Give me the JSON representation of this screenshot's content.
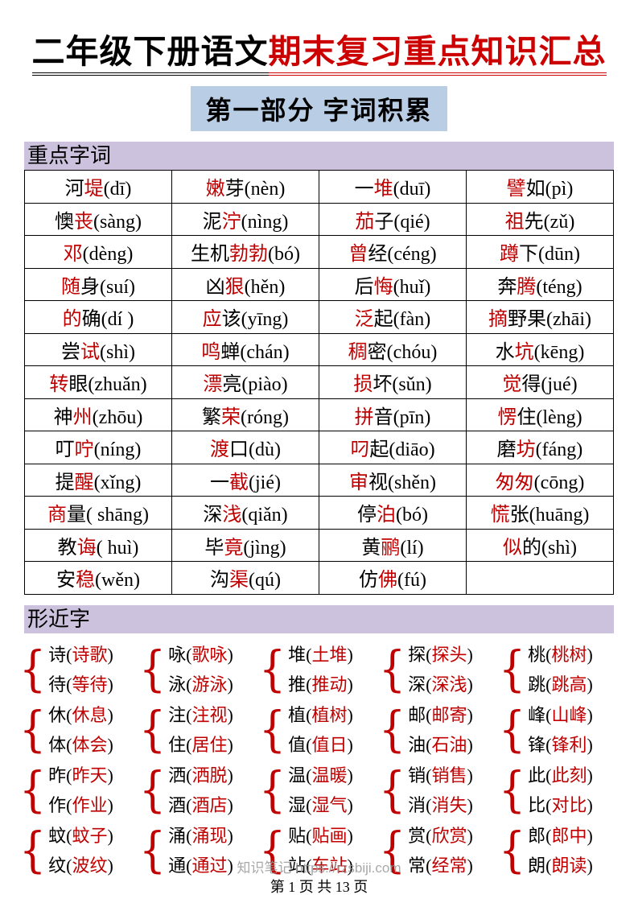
{
  "title": {
    "black": "二年级下册语文",
    "red": "期末复习重点知识汇总"
  },
  "subtitle": "第一部分 字词积累",
  "colors": {
    "red_char": "#c00000",
    "title_red": "#cc0000",
    "section_bg": "#ccc2dd",
    "subtitle_bg": "#b9cde5",
    "watermark_gray": "#9a9a9a"
  },
  "brace_glyph": "{",
  "key_words": {
    "header": "重点字词",
    "rows": [
      [
        [
          [
            "河",
            "k"
          ],
          [
            "堤",
            "r"
          ],
          [
            "(dī)",
            "k"
          ]
        ],
        [
          [
            "嫩",
            "r"
          ],
          [
            "芽",
            "k"
          ],
          [
            "(nèn)",
            "k"
          ]
        ],
        [
          [
            "一",
            "k"
          ],
          [
            "堆",
            "r"
          ],
          [
            "(duī)",
            "k"
          ]
        ],
        [
          [
            "譬",
            "r"
          ],
          [
            "如",
            "k"
          ],
          [
            "(pì)",
            "k"
          ]
        ]
      ],
      [
        [
          [
            "懊",
            "k"
          ],
          [
            "丧",
            "r"
          ],
          [
            "(sàng)",
            "k"
          ]
        ],
        [
          [
            "泥",
            "k"
          ],
          [
            "泞",
            "r"
          ],
          [
            "(nìng)",
            "k"
          ]
        ],
        [
          [
            "茄",
            "r"
          ],
          [
            "子",
            "k"
          ],
          [
            "(qié)",
            "k"
          ]
        ],
        [
          [
            "祖",
            "r"
          ],
          [
            "先",
            "k"
          ],
          [
            "(zǔ)",
            "k"
          ]
        ]
      ],
      [
        [
          [
            "邓",
            "r"
          ],
          [
            "(dèng)",
            "k"
          ]
        ],
        [
          [
            "生机",
            "k"
          ],
          [
            "勃勃",
            "r"
          ],
          [
            "(bó)",
            "k"
          ]
        ],
        [
          [
            "曾",
            "r"
          ],
          [
            "经",
            "k"
          ],
          [
            "(céng)",
            "k"
          ]
        ],
        [
          [
            "蹲",
            "r"
          ],
          [
            "下",
            "k"
          ],
          [
            "(dūn)",
            "k"
          ]
        ]
      ],
      [
        [
          [
            "随",
            "r"
          ],
          [
            "身",
            "k"
          ],
          [
            "(suí)",
            "k"
          ]
        ],
        [
          [
            "凶",
            "k"
          ],
          [
            "狠",
            "r"
          ],
          [
            "(hěn)",
            "k"
          ]
        ],
        [
          [
            "后",
            "k"
          ],
          [
            "悔",
            "r"
          ],
          [
            "(huǐ)",
            "k"
          ]
        ],
        [
          [
            "奔",
            "k"
          ],
          [
            "腾",
            "r"
          ],
          [
            "(téng)",
            "k"
          ]
        ]
      ],
      [
        [
          [
            "的",
            "r"
          ],
          [
            "确",
            "k"
          ],
          [
            "(dí )",
            "k"
          ]
        ],
        [
          [
            "应",
            "r"
          ],
          [
            "该",
            "k"
          ],
          [
            "(yīng)",
            "k"
          ]
        ],
        [
          [
            "泛",
            "r"
          ],
          [
            "起",
            "k"
          ],
          [
            "(fàn)",
            "k"
          ]
        ],
        [
          [
            "摘",
            "r"
          ],
          [
            "野果",
            "k"
          ],
          [
            "(zhāi)",
            "k"
          ]
        ]
      ],
      [
        [
          [
            "尝",
            "k"
          ],
          [
            "试",
            "r"
          ],
          [
            "(shì)",
            "k"
          ]
        ],
        [
          [
            "鸣",
            "r"
          ],
          [
            "蝉",
            "k"
          ],
          [
            "(chán)",
            "k"
          ]
        ],
        [
          [
            "稠",
            "r"
          ],
          [
            "密",
            "k"
          ],
          [
            "(chóu)",
            "k"
          ]
        ],
        [
          [
            "水",
            "k"
          ],
          [
            "坑",
            "r"
          ],
          [
            "(kēng)",
            "k"
          ]
        ]
      ],
      [
        [
          [
            "转",
            "r"
          ],
          [
            "眼",
            "k"
          ],
          [
            "(zhuǎn)",
            "k"
          ]
        ],
        [
          [
            "漂",
            "r"
          ],
          [
            "亮",
            "k"
          ],
          [
            "(piào)",
            "k"
          ]
        ],
        [
          [
            "损",
            "r"
          ],
          [
            "坏",
            "k"
          ],
          [
            "(sǔn)",
            "k"
          ]
        ],
        [
          [
            "觉",
            "r"
          ],
          [
            "得",
            "k"
          ],
          [
            "(jué)",
            "k"
          ]
        ]
      ],
      [
        [
          [
            "神",
            "k"
          ],
          [
            "州",
            "r"
          ],
          [
            "(zhōu)",
            "k"
          ]
        ],
        [
          [
            "繁",
            "k"
          ],
          [
            "荣",
            "r"
          ],
          [
            "(róng)",
            "k"
          ]
        ],
        [
          [
            "拼",
            "r"
          ],
          [
            "音",
            "k"
          ],
          [
            "(pīn)",
            "k"
          ]
        ],
        [
          [
            "愣",
            "r"
          ],
          [
            "住",
            "k"
          ],
          [
            "(lèng)",
            "k"
          ]
        ]
      ],
      [
        [
          [
            "叮",
            "k"
          ],
          [
            "咛",
            "r"
          ],
          [
            "(níng)",
            "k"
          ]
        ],
        [
          [
            "渡",
            "r"
          ],
          [
            "口",
            "k"
          ],
          [
            "(dù)",
            "k"
          ]
        ],
        [
          [
            "叼",
            "r"
          ],
          [
            "起",
            "k"
          ],
          [
            "(diāo)",
            "k"
          ]
        ],
        [
          [
            "磨",
            "k"
          ],
          [
            "坊",
            "r"
          ],
          [
            "(fáng)",
            "k"
          ]
        ]
      ],
      [
        [
          [
            "提",
            "k"
          ],
          [
            "醒",
            "r"
          ],
          [
            "(xǐng)",
            "k"
          ]
        ],
        [
          [
            "一",
            "k"
          ],
          [
            "截",
            "r"
          ],
          [
            "(jié)",
            "k"
          ]
        ],
        [
          [
            "审",
            "r"
          ],
          [
            "视",
            "k"
          ],
          [
            "(shěn)",
            "k"
          ]
        ],
        [
          [
            "匆匆",
            "r"
          ],
          [
            "(cōng)",
            "k"
          ]
        ]
      ],
      [
        [
          [
            "商",
            "r"
          ],
          [
            "量",
            "k"
          ],
          [
            "( shāng)",
            "k"
          ]
        ],
        [
          [
            "深",
            "k"
          ],
          [
            "浅",
            "r"
          ],
          [
            "(qiǎn)",
            "k"
          ]
        ],
        [
          [
            "停",
            "k"
          ],
          [
            "泊",
            "r"
          ],
          [
            "(bó)",
            "k"
          ]
        ],
        [
          [
            "慌",
            "r"
          ],
          [
            "张",
            "k"
          ],
          [
            "(huāng)",
            "k"
          ]
        ]
      ],
      [
        [
          [
            "教",
            "k"
          ],
          [
            "诲",
            "r"
          ],
          [
            "( huì)",
            "k"
          ]
        ],
        [
          [
            "毕",
            "k"
          ],
          [
            "竟",
            "r"
          ],
          [
            "(jìng)",
            "k"
          ]
        ],
        [
          [
            "黄",
            "k"
          ],
          [
            "鹂",
            "r"
          ],
          [
            "(lí)",
            "k"
          ]
        ],
        [
          [
            "似",
            "r"
          ],
          [
            "的",
            "k"
          ],
          [
            "(shì)",
            "k"
          ]
        ]
      ],
      [
        [
          [
            "安",
            "k"
          ],
          [
            "稳",
            "r"
          ],
          [
            "(wěn)",
            "k"
          ]
        ],
        [
          [
            "沟",
            "k"
          ],
          [
            "渠",
            "r"
          ],
          [
            "(qú)",
            "k"
          ]
        ],
        [
          [
            "仿",
            "k"
          ],
          [
            "佛",
            "r"
          ],
          [
            "(fú)",
            "k"
          ]
        ],
        []
      ]
    ]
  },
  "similar_chars": {
    "header": "形近字",
    "rows": [
      [
        {
          "top": [
            "诗",
            "诗歌"
          ],
          "bottom": [
            "待",
            "等待"
          ]
        },
        {
          "top": [
            "咏",
            "歌咏"
          ],
          "bottom": [
            "泳",
            "游泳"
          ]
        },
        {
          "top": [
            "堆",
            "土堆"
          ],
          "bottom": [
            "推",
            "推动"
          ]
        },
        {
          "top": [
            "探",
            "探头"
          ],
          "bottom": [
            "深",
            "深浅"
          ]
        },
        {
          "top": [
            "桃",
            "桃树"
          ],
          "bottom": [
            "跳",
            "跳高"
          ]
        }
      ],
      [
        {
          "top": [
            "休",
            "休息"
          ],
          "bottom": [
            "体",
            "体会"
          ]
        },
        {
          "top": [
            "注",
            "注视"
          ],
          "bottom": [
            "住",
            "居住"
          ]
        },
        {
          "top": [
            "植",
            "植树"
          ],
          "bottom": [
            "值",
            "值日"
          ]
        },
        {
          "top": [
            "邮",
            "邮寄"
          ],
          "bottom": [
            "油",
            "石油"
          ]
        },
        {
          "top": [
            "峰",
            "山峰"
          ],
          "bottom": [
            "锋",
            "锋利"
          ]
        }
      ],
      [
        {
          "top": [
            "昨",
            "昨天"
          ],
          "bottom": [
            "作",
            "作业"
          ]
        },
        {
          "top": [
            "洒",
            "洒脱"
          ],
          "bottom": [
            "酒",
            "酒店"
          ]
        },
        {
          "top": [
            "温",
            "温暖"
          ],
          "bottom": [
            "湿",
            "湿气"
          ]
        },
        {
          "top": [
            "销",
            "销售"
          ],
          "bottom": [
            "消",
            "消失"
          ]
        },
        {
          "top": [
            "此",
            "此刻"
          ],
          "bottom": [
            "比",
            "对比"
          ]
        }
      ],
      [
        {
          "top": [
            "蚊",
            "蚊子"
          ],
          "bottom": [
            "纹",
            "波纹"
          ]
        },
        {
          "top": [
            "涌",
            "涌现"
          ],
          "bottom": [
            "通",
            "通过"
          ]
        },
        {
          "top": [
            "贴",
            "贴画"
          ],
          "bottom": [
            "站",
            "车站"
          ]
        },
        {
          "top": [
            "赏",
            "欣赏"
          ],
          "bottom": [
            "常",
            "经常"
          ]
        },
        {
          "top": [
            "郎",
            "郎中"
          ],
          "bottom": [
            "朗",
            "朗读"
          ]
        }
      ]
    ]
  },
  "footer": {
    "watermark": "知识笔记 https://rzsbiji.com",
    "page_info": "第 1 页 共 13 页"
  }
}
